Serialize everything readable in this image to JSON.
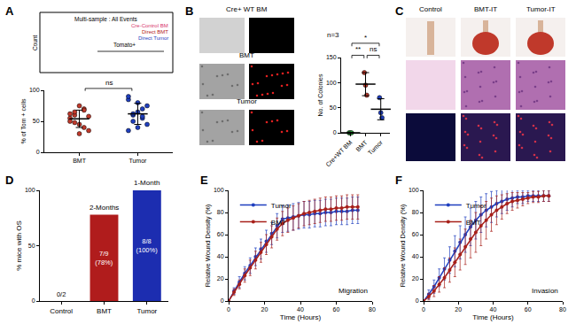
{
  "chart_data": [
    {
      "panel": "A",
      "type": "image",
      "title": "Multi-sample : All Events",
      "ylabel": "Count",
      "gate": "Tomato+",
      "series": [
        {
          "name": "Cre-Control BM",
          "color": "#d6336c"
        },
        {
          "name": "Direct BMT",
          "color": "#b22222"
        },
        {
          "name": "Direct Tumor",
          "color": "#1f3fbf"
        }
      ]
    },
    {
      "type": "dot",
      "ylabel": "% of Tom + cells",
      "ylim": [
        0,
        100
      ],
      "yticks": [
        0,
        50,
        100
      ],
      "groups": [
        {
          "name": "BMT",
          "color": "#c0392b",
          "values": [
            55,
            60,
            45,
            70,
            35,
            50,
            65,
            75,
            40,
            58,
            62,
            48,
            30,
            68
          ],
          "mean": 54,
          "sd": 14
        },
        {
          "name": "Tumor",
          "color": "#1f3fbf",
          "values": [
            85,
            60,
            40,
            55,
            75,
            90,
            50,
            65,
            70,
            45,
            35,
            62,
            80,
            58
          ],
          "mean": 62,
          "sd": 17
        }
      ],
      "comparisons": [
        {
          "groups": [
            "BMT",
            "Tumor"
          ],
          "label": "ns"
        }
      ]
    },
    {
      "panel": "B",
      "type": "image",
      "rows": [
        "Cre+ WT BM",
        "BMT",
        "Tumor"
      ]
    },
    {
      "type": "dot",
      "note": "n=3",
      "ylabel": "No. of Colonies",
      "ylim": [
        0,
        150
      ],
      "yticks": [
        0,
        50,
        100,
        150
      ],
      "groups": [
        {
          "name": "Cre+WT BM",
          "color": "#2e9e3e",
          "values": [
            0,
            0,
            0
          ],
          "mean": 0,
          "sd": 0
        },
        {
          "name": "BMT",
          "color": "#c0392b",
          "values": [
            120,
            95,
            75
          ],
          "mean": 97,
          "sd": 23
        },
        {
          "name": "Tumor",
          "color": "#1f3fbf",
          "values": [
            70,
            40,
            30
          ],
          "mean": 47,
          "sd": 21
        }
      ],
      "comparisons": [
        {
          "groups": [
            "Cre+WT BM",
            "BMT"
          ],
          "label": "**"
        },
        {
          "groups": [
            "BMT",
            "Tumor"
          ],
          "label": "ns"
        },
        {
          "groups": [
            "Cre+WT BM",
            "Tumor"
          ],
          "label": "*"
        }
      ]
    },
    {
      "panel": "C",
      "type": "image",
      "columns": [
        "Control",
        "BMT-IT",
        "Tumor-IT"
      ]
    },
    {
      "panel": "D",
      "type": "bar",
      "ylabel": "% mice with OS",
      "categories": [
        "Control",
        "BMT",
        "Tumor"
      ],
      "values": [
        0,
        78,
        100
      ],
      "value_labels": [
        "0/2",
        "7/9 (78%)",
        "8/8 (100%)"
      ],
      "data_labels": true,
      "colors": [
        "#777777",
        "#b01c1c",
        "#1c2db0"
      ],
      "ylim": [
        0,
        100
      ],
      "yticks": [
        0,
        50,
        100
      ],
      "annotations": [
        {
          "category": "BMT",
          "text": "2-Months"
        },
        {
          "category": "Tumor",
          "text": "1-Month"
        }
      ]
    },
    {
      "panel": "E",
      "type": "line",
      "note": "Migration",
      "xlabel": "Time (Hours)",
      "ylabel": "Relative Wound Density (%)",
      "xlim": [
        0,
        80
      ],
      "xticks": [
        0,
        20,
        40,
        60,
        80
      ],
      "ylim": [
        0,
        100
      ],
      "yticks": [
        0,
        20,
        40,
        60,
        80,
        100
      ],
      "grid": false,
      "legend": "upper left",
      "marker": "circle",
      "x": [
        0,
        3,
        6,
        9,
        12,
        15,
        18,
        21,
        24,
        27,
        30,
        33,
        36,
        39,
        42,
        45,
        48,
        51,
        54,
        57,
        60,
        63,
        66,
        69,
        72
      ],
      "series": [
        {
          "name": "Tumor",
          "color": "#1f3fbf",
          "values": [
            0,
            9,
            17,
            25,
            32,
            40,
            47,
            54,
            61,
            68,
            74,
            75,
            76,
            77,
            78,
            78,
            79,
            79,
            80,
            80,
            81,
            81,
            81,
            82,
            82
          ],
          "errors": [
            0,
            3,
            5,
            6,
            7,
            8,
            9,
            10,
            10,
            11,
            12,
            12,
            12,
            12,
            12,
            12,
            12,
            12,
            12,
            12,
            12,
            12,
            12,
            12,
            12
          ]
        },
        {
          "name": "BMT",
          "color": "#a8201a",
          "values": [
            0,
            8,
            15,
            23,
            30,
            37,
            44,
            51,
            58,
            65,
            70,
            73,
            75,
            77,
            79,
            80,
            81,
            82,
            83,
            83,
            84,
            84,
            85,
            85,
            85
          ],
          "errors": [
            0,
            3,
            4,
            6,
            7,
            8,
            9,
            9,
            10,
            10,
            11,
            11,
            11,
            11,
            11,
            11,
            11,
            11,
            11,
            11,
            11,
            11,
            11,
            11,
            11
          ]
        }
      ]
    },
    {
      "panel": "F",
      "type": "line",
      "note": "Invasion",
      "xlabel": "Time (Hours)",
      "ylabel": "Relative Wound Density (%)",
      "xlim": [
        0,
        80
      ],
      "xticks": [
        0,
        20,
        40,
        60,
        80
      ],
      "ylim": [
        0,
        100
      ],
      "yticks": [
        0,
        20,
        40,
        60,
        80,
        100
      ],
      "grid": false,
      "legend": "upper left",
      "marker": "circle",
      "x": [
        0,
        3,
        6,
        9,
        12,
        15,
        18,
        21,
        24,
        27,
        30,
        33,
        36,
        39,
        42,
        45,
        48,
        51,
        54,
        57,
        60,
        63,
        66,
        69,
        72
      ],
      "series": [
        {
          "name": "Tumor",
          "color": "#1f3fbf",
          "values": [
            0,
            6,
            13,
            21,
            29,
            37,
            45,
            53,
            60,
            67,
            73,
            78,
            82,
            85,
            88,
            90,
            92,
            93,
            94,
            94,
            95,
            95,
            95,
            95,
            95
          ],
          "errors": [
            0,
            4,
            6,
            8,
            10,
            12,
            14,
            15,
            16,
            17,
            17,
            16,
            15,
            14,
            12,
            11,
            10,
            8,
            6,
            6,
            5,
            5,
            5,
            5,
            5
          ]
        },
        {
          "name": "BMT",
          "color": "#a8201a",
          "values": [
            0,
            4,
            9,
            15,
            21,
            28,
            35,
            42,
            49,
            56,
            62,
            68,
            73,
            78,
            82,
            85,
            88,
            90,
            91,
            92,
            93,
            94,
            94,
            95,
            95
          ],
          "errors": [
            0,
            3,
            5,
            7,
            9,
            11,
            13,
            14,
            16,
            17,
            18,
            18,
            17,
            15,
            13,
            11,
            9,
            8,
            7,
            6,
            5,
            5,
            5,
            5,
            5
          ]
        }
      ]
    }
  ]
}
